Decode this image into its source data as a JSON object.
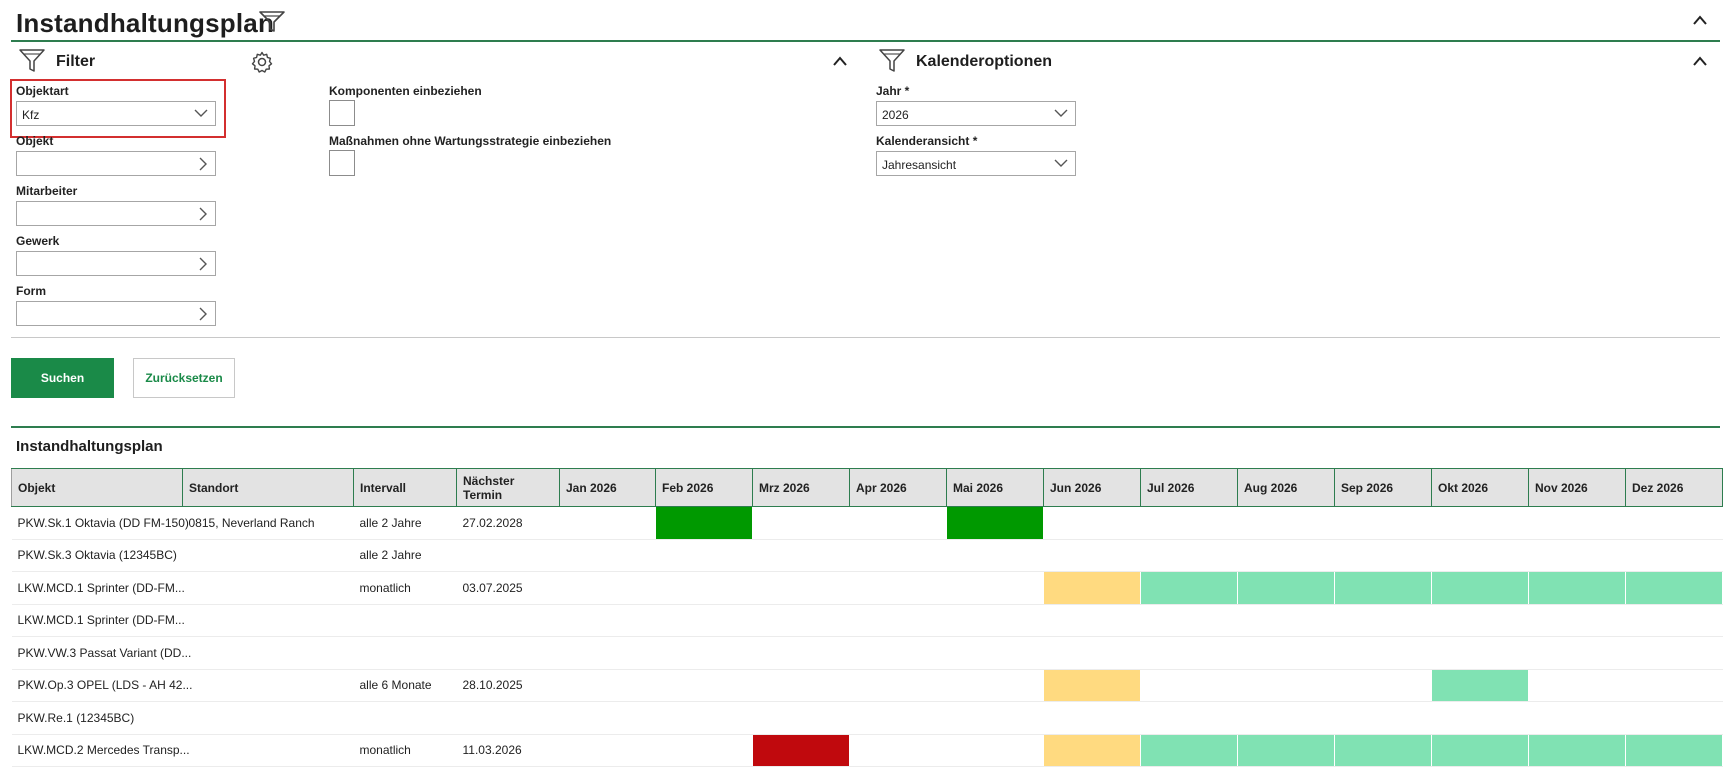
{
  "header": {
    "title": "Instandhaltungsplan"
  },
  "filter": {
    "title": "Filter",
    "objektart": {
      "label": "Objektart",
      "value": "Kfz"
    },
    "objekt": {
      "label": "Objekt",
      "value": ""
    },
    "mitarbeiter": {
      "label": "Mitarbeiter",
      "value": ""
    },
    "gewerk": {
      "label": "Gewerk",
      "value": ""
    },
    "form": {
      "label": "Form",
      "value": ""
    },
    "komponenten": {
      "label": "Komponenten einbeziehen",
      "checked": false
    },
    "massnahmen": {
      "label": "Maßnahmen ohne Wartungsstrategie einbeziehen",
      "checked": false
    }
  },
  "kalender": {
    "title": "Kalenderoptionen",
    "jahr": {
      "label": "Jahr *",
      "value": "2026"
    },
    "ansicht": {
      "label": "Kalenderansicht *",
      "value": "Jahresansicht"
    }
  },
  "actions": {
    "search": "Suchen",
    "reset": "Zurücksetzen"
  },
  "plan": {
    "title": "Instandhaltungsplan",
    "columns": [
      "Objekt",
      "Standort",
      "Intervall",
      "Nächster Termin",
      "Jan 2026",
      "Feb 2026",
      "Mrz 2026",
      "Apr 2026",
      "Mai 2026",
      "Jun 2026",
      "Jul 2026",
      "Aug 2026",
      "Sep 2026",
      "Okt 2026",
      "Nov 2026",
      "Dez 2026"
    ],
    "colors": {
      "green": "#009900",
      "light": "#80e2b3",
      "yellow": "#ffda80",
      "red": "#c0090d"
    },
    "rows": [
      {
        "objekt": "PKW.Sk.1 Oktavia (DD FM-150)",
        "standort": "0815, Neverland Ranch",
        "intervall": "alle 2 Jahre",
        "termin": "27.02.2028",
        "months": [
          "none",
          "green",
          "none",
          "none",
          "green",
          "none",
          "none",
          "none",
          "none",
          "none",
          "none",
          "none"
        ]
      },
      {
        "objekt": "PKW.Sk.3 Oktavia (12345BC)",
        "standort": "",
        "intervall": "alle 2 Jahre",
        "termin": "",
        "months": [
          "none",
          "none",
          "none",
          "none",
          "none",
          "none",
          "none",
          "none",
          "none",
          "none",
          "none",
          "none"
        ]
      },
      {
        "objekt": "LKW.MCD.1 Sprinter (DD-FM...",
        "standort": "",
        "intervall": "monatlich",
        "termin": "03.07.2025",
        "months": [
          "none",
          "none",
          "none",
          "none",
          "none",
          "yellow",
          "light",
          "light",
          "light",
          "light",
          "light",
          "light"
        ]
      },
      {
        "objekt": "LKW.MCD.1 Sprinter (DD-FM...",
        "standort": "",
        "intervall": "",
        "termin": "",
        "months": [
          "none",
          "none",
          "none",
          "none",
          "none",
          "none",
          "none",
          "none",
          "none",
          "none",
          "none",
          "none"
        ]
      },
      {
        "objekt": "PKW.VW.3 Passat Variant (DD...",
        "standort": "",
        "intervall": "",
        "termin": "",
        "months": [
          "none",
          "none",
          "none",
          "none",
          "none",
          "none",
          "none",
          "none",
          "none",
          "none",
          "none",
          "none"
        ]
      },
      {
        "objekt": "PKW.Op.3 OPEL (LDS - AH 42...",
        "standort": "",
        "intervall": "alle 6 Monate",
        "termin": "28.10.2025",
        "months": [
          "none",
          "none",
          "none",
          "none",
          "none",
          "yellow",
          "none",
          "none",
          "none",
          "light",
          "none",
          "none"
        ]
      },
      {
        "objekt": "PKW.Re.1 (12345BC)",
        "standort": "",
        "intervall": "",
        "termin": "",
        "months": [
          "none",
          "none",
          "none",
          "none",
          "none",
          "none",
          "none",
          "none",
          "none",
          "none",
          "none",
          "none"
        ]
      },
      {
        "objekt": "LKW.MCD.2 Mercedes Transp...",
        "standort": "",
        "intervall": "monatlich",
        "termin": "11.03.2026",
        "months": [
          "none",
          "none",
          "red",
          "none",
          "none",
          "yellow",
          "light",
          "light",
          "light",
          "light",
          "light",
          "light"
        ]
      }
    ]
  }
}
